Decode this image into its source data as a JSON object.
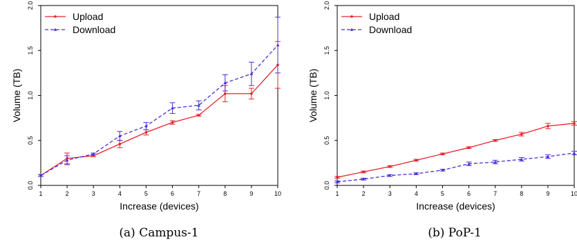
{
  "chart_data": [
    {
      "type": "line",
      "caption": "(a) Campus-1",
      "xlabel": "Increase (devices)",
      "ylabel": "Volume (TB)",
      "x": [
        1,
        2,
        3,
        4,
        5,
        6,
        7,
        8,
        9,
        10
      ],
      "xlim": [
        1,
        10
      ],
      "ylim": [
        0,
        2
      ],
      "yticks": [
        "0.0",
        "0.5",
        "1.0",
        "1.5",
        "2.0"
      ],
      "legend_position": "top-left",
      "series": [
        {
          "name": "Upload",
          "color": "#e8212b",
          "style": "solid",
          "marker": "dot",
          "values": [
            0.11,
            0.3,
            0.33,
            0.46,
            0.59,
            0.7,
            0.78,
            1.02,
            1.02,
            1.34
          ],
          "err": [
            0.01,
            0.06,
            0.01,
            0.04,
            0.03,
            0.02,
            0.01,
            0.09,
            0.06,
            0.26
          ]
        },
        {
          "name": "Download",
          "color": "#4b2bd6",
          "style": "dashed",
          "marker": "triangle",
          "values": [
            0.11,
            0.28,
            0.35,
            0.55,
            0.66,
            0.86,
            0.89,
            1.14,
            1.24,
            1.56
          ],
          "err": [
            0.01,
            0.05,
            0.01,
            0.05,
            0.04,
            0.06,
            0.05,
            0.09,
            0.13,
            0.31
          ]
        }
      ]
    },
    {
      "type": "line",
      "caption": "(b) PoP-1",
      "xlabel": "Increase (devices)",
      "ylabel": "Volume (TB)",
      "x": [
        1,
        2,
        3,
        4,
        5,
        6,
        7,
        8,
        9,
        10
      ],
      "xlim": [
        1,
        10
      ],
      "ylim": [
        0,
        2
      ],
      "yticks": [
        "0.0",
        "0.5",
        "1.0",
        "1.5",
        "2.0"
      ],
      "legend_position": "top-left",
      "series": [
        {
          "name": "Upload",
          "color": "#e8212b",
          "style": "solid",
          "marker": "dot",
          "values": [
            0.09,
            0.15,
            0.21,
            0.28,
            0.35,
            0.42,
            0.5,
            0.57,
            0.66,
            0.69
          ],
          "err": [
            0.01,
            0.01,
            0.01,
            0.01,
            0.01,
            0.01,
            0.01,
            0.02,
            0.03,
            0.02
          ]
        },
        {
          "name": "Download",
          "color": "#4b2bd6",
          "style": "dashed",
          "marker": "triangle",
          "values": [
            0.04,
            0.07,
            0.11,
            0.13,
            0.17,
            0.24,
            0.26,
            0.29,
            0.32,
            0.36
          ],
          "err": [
            0.01,
            0.01,
            0.01,
            0.01,
            0.01,
            0.02,
            0.02,
            0.02,
            0.02,
            0.02
          ]
        }
      ]
    }
  ]
}
